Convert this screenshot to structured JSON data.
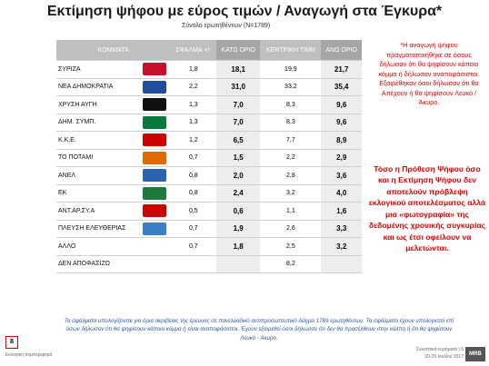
{
  "header": {
    "title": "Εκτίμηση ψήφου με εύρος τιμών / Αναγωγή στα Έγκυρα*",
    "subtitle": "Σύνολο ερωτηθέντων (Ν=1789)"
  },
  "table": {
    "columns": [
      "ΚΟΜΜΑΤΑ",
      "ΣΦΑΛΜΑ +/-",
      "ΚΑΤΩ ΟΡΙΟ",
      "ΚΕΝΤΡΙΚΗ ΤΙΜΗ",
      "ΑΝΩ ΟΡΙΟ"
    ],
    "rows": [
      [
        "ΣΥΡΙΖΑ",
        "1,8",
        "18,1",
        "19,9",
        "21,7"
      ],
      [
        "ΝΕΑ ΔΗΜΟΚΡΑΤΙΑ",
        "2,2",
        "31,0",
        "33,2",
        "35,4"
      ],
      [
        "ΧΡΥΣΗ ΑΥΓΗ",
        "1,3",
        "7,0",
        "8,3",
        "9,6"
      ],
      [
        "ΔΗΜ. ΣΥΜΠ.",
        "1,3",
        "7,0",
        "8,3",
        "9,6"
      ],
      [
        "Κ.Κ.Ε.",
        "1,2",
        "6,5",
        "7,7",
        "8,9"
      ],
      [
        "ΤΟ ΠΟΤΑΜΙ",
        "0,7",
        "1,5",
        "2,2",
        "2,9"
      ],
      [
        "ΑΝΕΛ",
        "0,8",
        "2,0",
        "2,8",
        "3,6"
      ],
      [
        "ΕΚ",
        "0,8",
        "2,4",
        "3,2",
        "4,0"
      ],
      [
        "ΑΝΤ.ΑΡ.ΣΥ.Α",
        "0,5",
        "0,6",
        "1,1",
        "1,6"
      ],
      [
        "ΠΛΕΥΣΗ ΕΛΕΥΘΕΡΙΑΣ",
        "0,7",
        "1,9",
        "2,6",
        "3,3"
      ],
      [
        "ΑΛΛΟ",
        "0,7",
        "1,8",
        "2,5",
        "3,2"
      ],
      [
        "ΔΕΝ ΑΠΟΦΑΣΙΖΩ",
        null,
        null,
        "8,2",
        null
      ]
    ]
  },
  "notes": [
    "*Η αναγωγή ψήφου πραγματοποιήθηκε σε όσους δήλωσαν ότι θα ψηφίσουν κάποιο κόμμα ή δήλωσαν αναποφάσιστοι. Εξαιρέθηκαν όσοι δήλωσαν ότι θα Απέχουν ή θα ψηφίσουν Λευκό / Άκυρο.",
    "Τόσο η Πρόθεση Ψήφου όσο και η Εκτίμηση Ψήφου δεν αποτελούν πρόβλεψη εκλογικού αποτελέσματος αλλά μια «φωτογραφία» της δεδομένης χρονικής συγκυρίας και ως έτσι οφείλουν να μελετώνται."
  ],
  "footer": {
    "text": "Τα σφάλματα υπολογίζονται για όρια ακρίβειας της έρευνας σε πανελλαδικό αντιπροσωπευτικό δείγμα 1789 ερωτηθέντων. Τα σφάλματα έχουν υπολογιστεί επί όσων δήλωσαν ότι θα ψηφίσουν κάποιο κόμμα ή είναι αναποφάσιστοι. Έχουν εξαιρεθεί όσοι δήλωσαν ότι δεν θα προσέλθουν στην κάλπη ή ότι θα ψηφίσουν Λευκό - Άκυρο.",
    "page": "8",
    "section": "Εκλογική συμπεριφορά",
    "right_label": "Συνοπτικά ευρήματα | 5",
    "date": "20-29 Ιουλίου 2017",
    "brand": "MRB"
  }
}
